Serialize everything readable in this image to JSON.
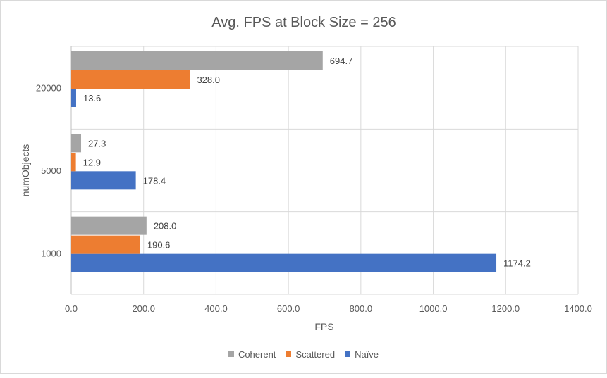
{
  "chart_data": {
    "type": "bar",
    "orientation": "horizontal",
    "title": "Avg. FPS at Block Size = 256",
    "xlabel": "FPS",
    "ylabel": "numObjects",
    "categories": [
      "1000",
      "5000",
      "20000"
    ],
    "xlim": [
      0,
      1400
    ],
    "xticks": [
      "0.0",
      "200.0",
      "400.0",
      "600.0",
      "800.0",
      "1000.0",
      "1200.0",
      "1400.0"
    ],
    "gridlines": true,
    "legend_position": "bottom",
    "series": [
      {
        "name": "Naïve",
        "color": "#4472c4",
        "values": [
          1174.2,
          178.4,
          13.6
        ],
        "labels": [
          "1174.2",
          "178.4",
          "13.6"
        ]
      },
      {
        "name": "Scattered",
        "color": "#ed7d31",
        "values": [
          190.6,
          12.9,
          328.0
        ],
        "labels": [
          "190.6",
          "12.9",
          "328.0"
        ]
      },
      {
        "name": "Coherent",
        "color": "#a5a5a5",
        "values": [
          208.0,
          27.3,
          694.7
        ],
        "labels": [
          "208.0",
          "27.3",
          "694.7"
        ]
      }
    ],
    "legend_order": [
      "Coherent",
      "Scattered",
      "Naïve"
    ]
  }
}
